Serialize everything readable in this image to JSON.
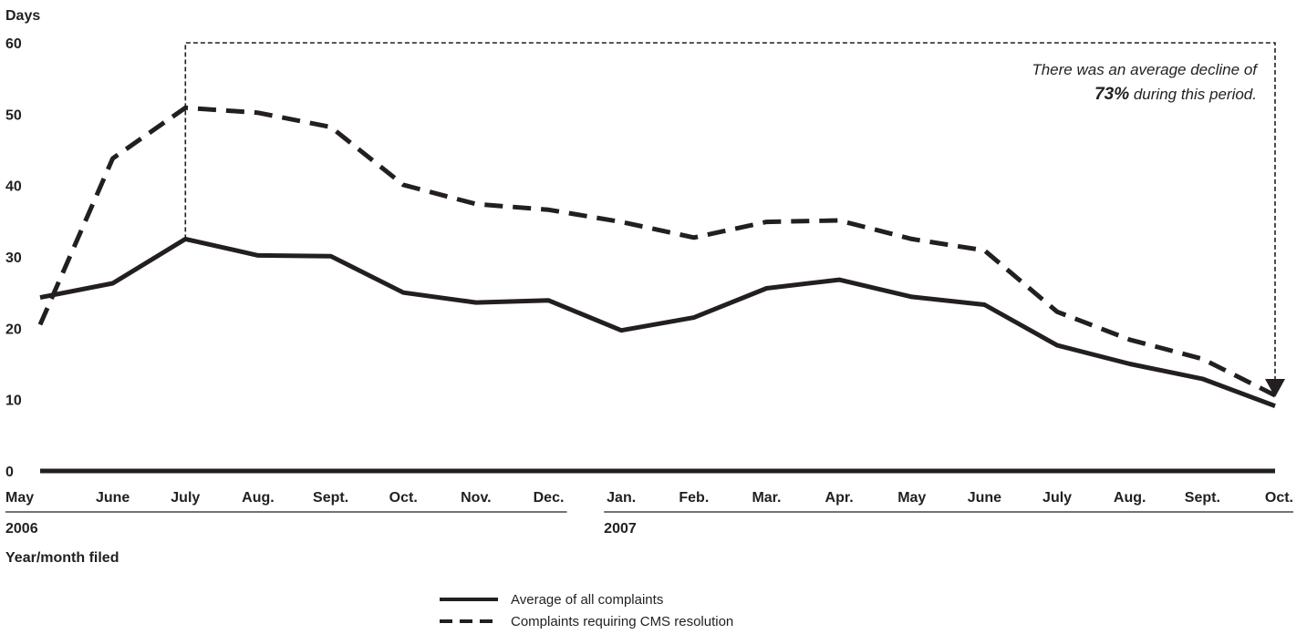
{
  "chart_data": {
    "type": "line",
    "ylabel": "Days",
    "xlabel": "Year/month filed",
    "ylim": [
      0,
      60
    ],
    "yticks": [
      0,
      10,
      20,
      30,
      40,
      50,
      60
    ],
    "categories": [
      "May",
      "June",
      "July",
      "Aug.",
      "Sept.",
      "Oct.",
      "Nov.",
      "Dec.",
      "Jan.",
      "Feb.",
      "Mar.",
      "Apr.",
      "May",
      "June",
      "July",
      "Aug.",
      "Sept.",
      "Oct."
    ],
    "years": [
      {
        "label": "2006",
        "start_index": 0,
        "end_index": 7
      },
      {
        "label": "2007",
        "start_index": 8,
        "end_index": 17
      }
    ],
    "series": [
      {
        "name": "Average of all complaints",
        "style": "solid",
        "values": [
          24.3,
          26.3,
          32.5,
          30.2,
          30.1,
          25.0,
          23.6,
          23.9,
          19.7,
          21.5,
          25.6,
          26.8,
          24.4,
          23.3,
          17.6,
          15.0,
          12.9,
          9.1
        ]
      },
      {
        "name": "Complaints requiring CMS resolution",
        "style": "dashed",
        "values": [
          20.5,
          43.8,
          50.9,
          50.2,
          48.2,
          40.1,
          37.4,
          36.6,
          34.9,
          32.7,
          34.9,
          35.1,
          32.5,
          30.9,
          22.3,
          18.4,
          15.7,
          10.6
        ]
      }
    ],
    "annotation": {
      "line1": "There was an average decline of",
      "line2_bold": "73%",
      "line2_rest": " during this period.",
      "bracket_from_index": 2,
      "bracket_to_index": 17
    },
    "grid": false,
    "legend_position": "bottom-center",
    "color": "#231f20"
  }
}
